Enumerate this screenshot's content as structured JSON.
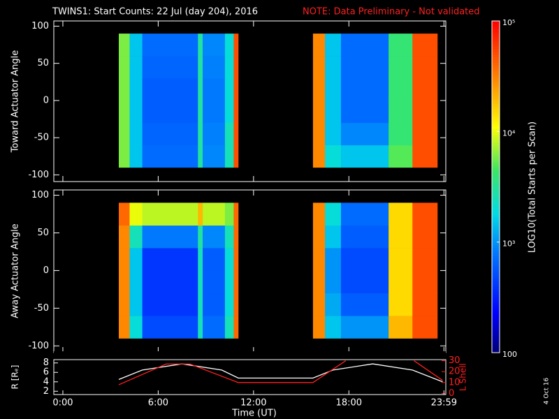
{
  "chart_data": [
    {
      "type": "heatmap",
      "title": "TWINS1: Start Counts: 22 Jul (day 204), 2016",
      "note": "NOTE: Data Preliminary - Not validated",
      "xlim": [
        -0.57,
        24.1
      ],
      "ylim": [
        -109,
        107
      ],
      "yticks": [
        -100,
        -50,
        0,
        50,
        100
      ],
      "angle_edges": [
        -90,
        -60,
        -30,
        0,
        30,
        60,
        90
      ],
      "colorbar": {
        "label": "LOG10(Total Starts per Scan)",
        "lim": [
          100,
          100000
        ],
        "log": true,
        "ticks": [
          100,
          {
            "value": 1000,
            "label": "10³"
          },
          {
            "value": 10000,
            "label": "10⁴"
          },
          {
            "value": 100000,
            "label": "10⁵"
          }
        ]
      },
      "panels": [
        {
          "ylabel": "Toward Actuator Angle",
          "segments": [
            {
              "x_edges": [
                3.52,
                4.2,
                5.0,
                8.5,
                8.8,
                10.2,
                10.75,
                11.04
              ],
              "values": [
                [
                  6000,
                  6000,
                  6000,
                  6000,
                  6000,
                  6000
                ],
                [
                  1500,
                  1500,
                  1500,
                  1500,
                  1500,
                  1500
                ],
                [
                  700,
                  650,
                  600,
                  600,
                  650,
                  700
                ],
                [
                  3000,
                  3000,
                  3000,
                  3000,
                  3000,
                  3000
                ],
                [
                  900,
                  850,
                  800,
                  800,
                  850,
                  900
                ],
                [
                  2500,
                  2500,
                  2000,
                  2000,
                  2000,
                  2000
                ],
                [
                  50000,
                  50000,
                  50000,
                  50000,
                  50000,
                  50000
                ]
              ]
            },
            {
              "x_edges": [
                15.74,
                16.5,
                17.5,
                20.5,
                22.0,
                23.57
              ],
              "values": [
                [
                  30000,
                  30000,
                  30000,
                  30000,
                  30000,
                  30000
                ],
                [
                  2000,
                  1500,
                  1500,
                  1500,
                  1500,
                  1500
                ],
                [
                  1500,
                  900,
                  700,
                  700,
                  700,
                  700
                ],
                [
                  5000,
                  4000,
                  4000,
                  4000,
                  4000,
                  4000
                ],
                [
                  50000,
                  50000,
                  50000,
                  50000,
                  50000,
                  50000
                ]
              ]
            }
          ]
        },
        {
          "ylabel": "Away Actuator Angle",
          "segments": [
            {
              "x_edges": [
                3.52,
                4.2,
                5.0,
                8.5,
                8.8,
                10.2,
                10.75,
                11.04
              ],
              "values": [
                [
                  30000,
                  30000,
                  30000,
                  30000,
                  30000,
                  40000
                ],
                [
                  2000,
                  1500,
                  1500,
                  1500,
                  2500,
                  10000
                ],
                [
                  500,
                  400,
                  400,
                  400,
                  800,
                  8000
                ],
                [
                  2500,
                  2500,
                  2500,
                  2500,
                  3000,
                  20000
                ],
                [
                  700,
                  600,
                  600,
                  600,
                  900,
                  8000
                ],
                [
                  2500,
                  2000,
                  2000,
                  2000,
                  2500,
                  6000
                ],
                [
                  40000,
                  40000,
                  40000,
                  40000,
                  40000,
                  40000
                ]
              ]
            },
            {
              "x_edges": [
                15.74,
                16.5,
                17.5,
                20.5,
                22.0,
                23.57
              ],
              "values": [
                [
                  30000,
                  30000,
                  30000,
                  30000,
                  30000,
                  30000
                ],
                [
                  1500,
                  1200,
                  1000,
                  1000,
                  1500,
                  2000
                ],
                [
                  1000,
                  600,
                  500,
                  500,
                  600,
                  700
                ],
                [
                  20000,
                  15000,
                  15000,
                  15000,
                  15000,
                  15000
                ],
                [
                  50000,
                  50000,
                  50000,
                  50000,
                  50000,
                  50000
                ]
              ]
            }
          ]
        }
      ]
    },
    {
      "type": "line",
      "xlabel": "Time (UT)",
      "ylabel": "R [Rₑ]",
      "y2label": "L Shell",
      "xlim": [
        -0.57,
        24.1
      ],
      "xticks": [
        {
          "value": 0,
          "label": "0:00"
        },
        {
          "value": 6,
          "label": "6:00"
        },
        {
          "value": 12,
          "label": "12:00"
        },
        {
          "value": 18,
          "label": "18:00"
        },
        {
          "value": 23.983,
          "label": "23:59"
        }
      ],
      "ylim": [
        1.3,
        8.7
      ],
      "yticks": [
        2,
        4,
        6,
        8
      ],
      "y2lim": [
        -1,
        31
      ],
      "y2ticks": [
        0,
        10,
        20,
        30
      ],
      "series": [
        {
          "name": "R",
          "color": "#ffffff",
          "x": [
            3.52,
            5,
            7.5,
            10,
            11.04,
            15.74,
            17,
            19.5,
            22,
            23.9
          ],
          "values": [
            4.5,
            6.5,
            7.8,
            6.5,
            4.8,
            4.8,
            6.5,
            7.8,
            6.5,
            4.0
          ]
        },
        {
          "name": "L Shell",
          "color": "#ff2020",
          "axis": "y2",
          "x": [
            3.52,
            6.5,
            8.0,
            11.04,
            15.74,
            17.8,
            20,
            22.1,
            23.9
          ],
          "values": [
            8,
            27,
            27,
            10,
            10,
            30,
            null,
            30,
            12
          ]
        }
      ]
    }
  ],
  "stamp": "4 Oct 16"
}
